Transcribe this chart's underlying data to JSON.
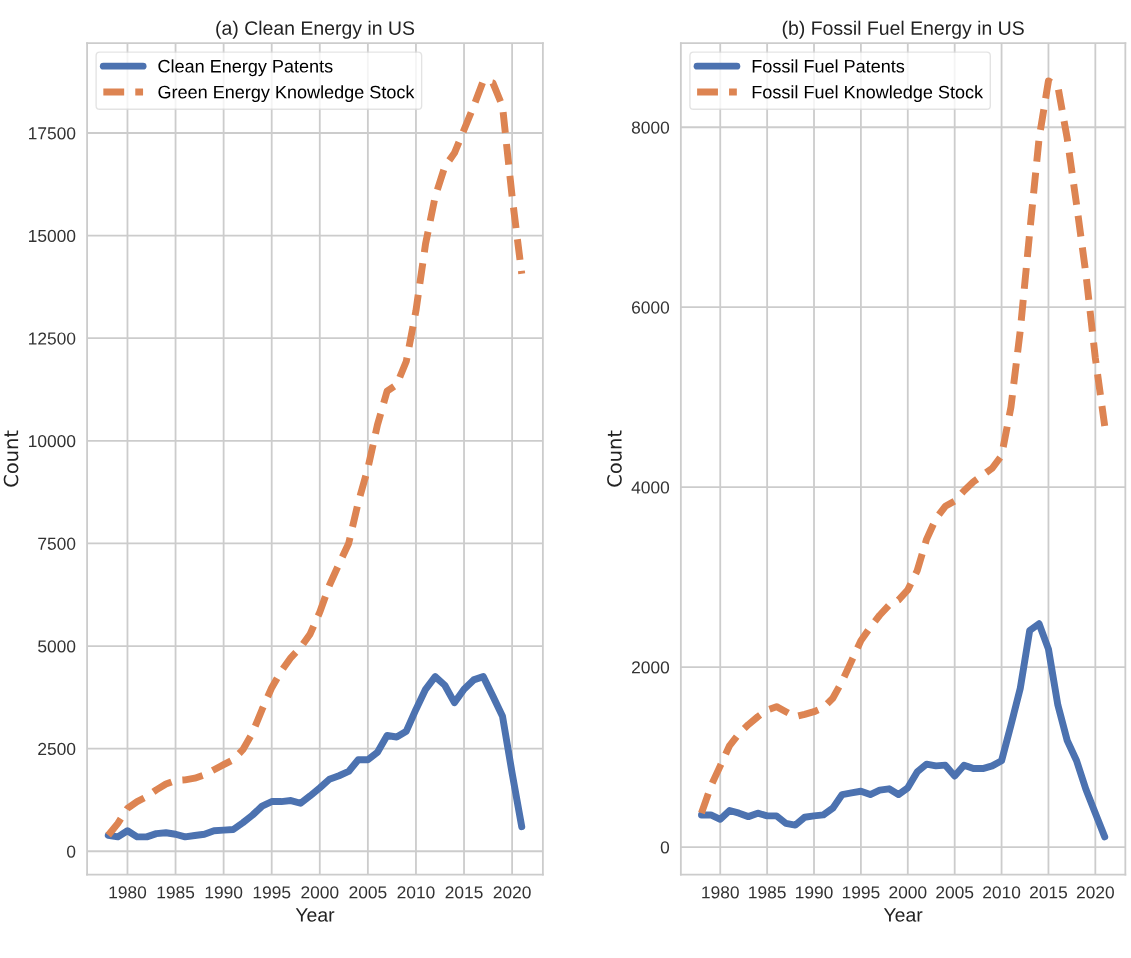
{
  "chart_data": [
    {
      "type": "line",
      "title": "(a) Clean Energy in US",
      "xlabel": "Year",
      "ylabel": "Count",
      "x": [
        1978,
        1979,
        1980,
        1981,
        1982,
        1983,
        1984,
        1985,
        1986,
        1987,
        1988,
        1989,
        1990,
        1991,
        1992,
        1993,
        1994,
        1995,
        1996,
        1997,
        1998,
        1999,
        2000,
        2001,
        2002,
        2003,
        2004,
        2005,
        2006,
        2007,
        2008,
        2009,
        2010,
        2011,
        2012,
        2013,
        2014,
        2015,
        2016,
        2017,
        2018,
        2019,
        2020,
        2021
      ],
      "series": [
        {
          "name": "Clean Energy Patents",
          "color": "#4c72b0",
          "line_style": "solid",
          "values": [
            390,
            350,
            500,
            350,
            350,
            430,
            450,
            415,
            350,
            385,
            415,
            500,
            515,
            530,
            695,
            880,
            1100,
            1210,
            1210,
            1235,
            1170,
            1350,
            1545,
            1755,
            1840,
            1945,
            2230,
            2230,
            2410,
            2820,
            2785,
            2925,
            3455,
            3945,
            4255,
            4045,
            3620,
            3945,
            4175,
            4255,
            3780,
            3290,
            1905,
            600
          ]
        },
        {
          "name": "Green Energy Knowledge Stock",
          "color": "#dd8452",
          "line_style": "dashed",
          "values": [
            390,
            680,
            1045,
            1210,
            1330,
            1495,
            1640,
            1725,
            1740,
            1780,
            1860,
            1985,
            2110,
            2230,
            2475,
            2885,
            3455,
            3985,
            4395,
            4720,
            4965,
            5295,
            5825,
            6480,
            7000,
            7500,
            8500,
            9330,
            10390,
            11210,
            11370,
            11940,
            13170,
            14800,
            15950,
            16680,
            17010,
            17580,
            18150,
            18770,
            18720,
            18150,
            15950,
            14070
          ]
        }
      ],
      "xlim": [
        1975.8,
        2023.2
      ],
      "xticks": [
        1980,
        1985,
        1990,
        1995,
        2000,
        2005,
        2010,
        2015,
        2020
      ],
      "ylim": [
        -570,
        19690
      ],
      "yticks": [
        0,
        2500,
        5000,
        7500,
        10000,
        12500,
        15000,
        17500
      ],
      "grid": true,
      "legend": "top left"
    },
    {
      "type": "line",
      "title": "(b) Fossil Fuel Energy in US",
      "xlabel": "Year",
      "ylabel": "Count",
      "x": [
        1978,
        1979,
        1980,
        1981,
        1982,
        1983,
        1984,
        1985,
        1986,
        1987,
        1988,
        1989,
        1990,
        1991,
        1992,
        1993,
        1994,
        1995,
        1996,
        1997,
        1998,
        1999,
        2000,
        2001,
        2002,
        2003,
        2004,
        2005,
        2006,
        2007,
        2008,
        2009,
        2010,
        2011,
        2012,
        2013,
        2014,
        2015,
        2016,
        2017,
        2018,
        2019,
        2020,
        2021
      ],
      "series": [
        {
          "name": "Fossil Fuel Patents",
          "color": "#4c72b0",
          "line_style": "solid",
          "values": [
            357,
            357,
            308,
            406,
            376,
            338,
            376,
            346,
            346,
            263,
            244,
            331,
            346,
            357,
            432,
            583,
            602,
            620,
            583,
            632,
            647,
            583,
            658,
            835,
            921,
            902,
            910,
            790,
            910,
            872,
            872,
            902,
            959,
            1354,
            1767,
            2406,
            2482,
            2200,
            1579,
            1184,
            959,
            639,
            376,
            113
          ]
        },
        {
          "name": "Fossil Fuel Knowledge Stock",
          "color": "#dd8452",
          "line_style": "dashed",
          "values": [
            376,
            677,
            902,
            1128,
            1260,
            1361,
            1448,
            1523,
            1560,
            1504,
            1448,
            1474,
            1504,
            1549,
            1654,
            1842,
            2068,
            2294,
            2444,
            2576,
            2688,
            2745,
            2858,
            3070,
            3420,
            3650,
            3787,
            3845,
            3960,
            4060,
            4135,
            4210,
            4350,
            4890,
            5745,
            6830,
            7875,
            8515,
            8457,
            7875,
            7140,
            6365,
            5434,
            4680
          ]
        }
      ],
      "xlim": [
        1975.8,
        2023.2
      ],
      "xticks": [
        1980,
        1985,
        1990,
        1995,
        2000,
        2005,
        2010,
        2015,
        2020
      ],
      "ylim": [
        -307,
        8935
      ],
      "yticks": [
        0,
        2000,
        4000,
        6000,
        8000
      ],
      "grid": true,
      "legend": "top left"
    }
  ]
}
